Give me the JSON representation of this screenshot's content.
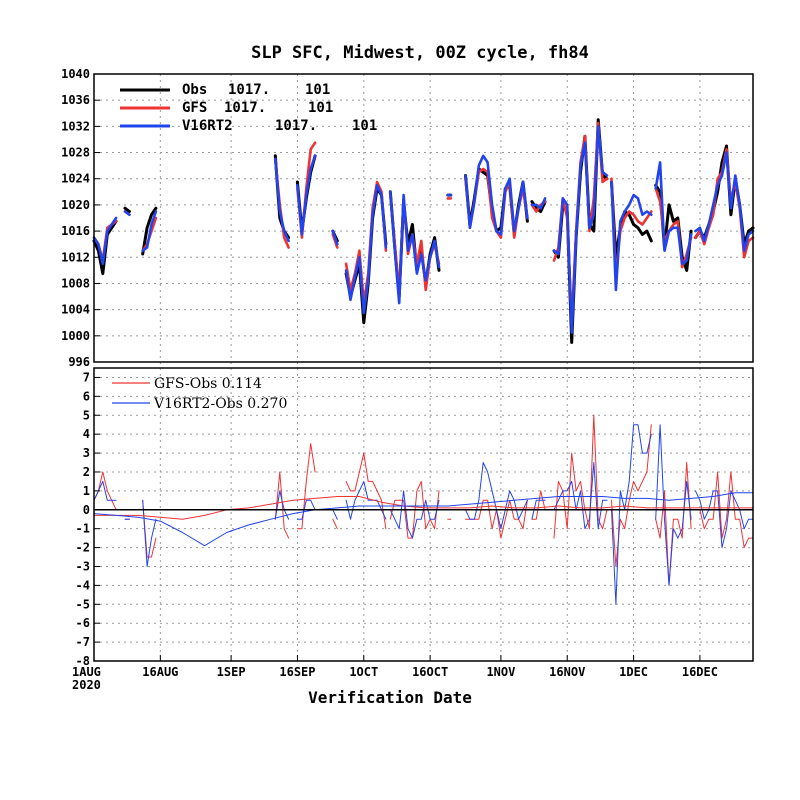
{
  "colors": {
    "obs": "#000000",
    "gfs": "#ee3333",
    "v16": "#2244ee",
    "grid": "#999999"
  },
  "chart_data": [
    {
      "type": "line",
      "title": "SLP SFC, Midwest, 00Z cycle, fh84",
      "xlabel": "",
      "ylabel": "",
      "ylim": [
        996,
        1040
      ],
      "y_ticks": [
        "996",
        "1000",
        "1004",
        "1008",
        "1012",
        "1016",
        "1020",
        "1024",
        "1028",
        "1032",
        "1036",
        "1040"
      ],
      "grid": true,
      "legend_position": "top-left",
      "x_tick_labels": [
        "1AUG",
        "16AUG",
        "1SEP",
        "16SEP",
        "1OCT",
        "16OCT",
        "1NOV",
        "16NOV",
        "1DEC",
        "16DEC"
      ],
      "x_tick_sublabel": "2020",
      "x_days": [
        0,
        15,
        31,
        46,
        61,
        76,
        92,
        107,
        122,
        137
      ],
      "series": [
        {
          "key": "obs",
          "name": "Obs",
          "stat1": "1017.",
          "stat2": "101"
        },
        {
          "key": "gfs",
          "name": "GFS",
          "stat1": "1017.",
          "stat2": "101"
        },
        {
          "key": "v16",
          "name": "V16RT2",
          "stat1": "1017.",
          "stat2": "101"
        }
      ],
      "segments": [
        {
          "x": [
            0,
            1,
            2,
            3,
            4,
            5
          ],
          "obs": [
            1014.5,
            1013.0,
            1009.5,
            1015.5,
            1016.5,
            1017.5
          ],
          "gfs": [
            1015.0,
            1014.0,
            1011.5,
            1016.5,
            1017.0,
            1017.5
          ],
          "v16": [
            1015.0,
            1014.0,
            1011.0,
            1016.0,
            1017.0,
            1018.0
          ]
        },
        {
          "x": [
            7,
            8
          ],
          "obs": [
            1019.5,
            1019.0
          ],
          "gfs": [
            1019.0,
            1018.5
          ],
          "v16": [
            1019.0,
            1018.5
          ]
        },
        {
          "x": [
            11,
            12,
            13,
            14
          ],
          "obs": [
            1012.5,
            1016.5,
            1018.5,
            1019.5
          ],
          "gfs": [
            1013.0,
            1014.0,
            1016.0,
            1018.0
          ],
          "v16": [
            1013.0,
            1013.5,
            1017.0,
            1019.0
          ]
        },
        {
          "x": [
            41,
            42,
            43,
            44
          ],
          "obs": [
            1027.5,
            1018.0,
            1016.0,
            1015.0
          ],
          "gfs": [
            1027.0,
            1020.0,
            1015.0,
            1013.5
          ],
          "v16": [
            1027.0,
            1019.0,
            1016.0,
            1014.5
          ]
        },
        {
          "x": [
            46,
            47,
            48,
            49,
            50
          ],
          "obs": [
            1023.5,
            1016.0,
            1021.0,
            1025.0,
            1027.5
          ],
          "gfs": [
            1022.5,
            1015.0,
            1022.5,
            1028.5,
            1029.5
          ],
          "v16": [
            1023.0,
            1015.5,
            1021.5,
            1025.5,
            1027.5
          ]
        },
        {
          "x": [
            54,
            55
          ],
          "obs": [
            1016.0,
            1014.5
          ],
          "gfs": [
            1015.5,
            1013.5
          ],
          "v16": [
            1016.0,
            1014.0
          ]
        },
        {
          "x": [
            57,
            58,
            59,
            60,
            61,
            62,
            63,
            64,
            65,
            66
          ],
          "obs": [
            1009.5,
            1006.0,
            1008.5,
            1011.0,
            1002.0,
            1008.0,
            1018.0,
            1022.5,
            1021.5,
            1014.0
          ],
          "gfs": [
            1011.0,
            1007.0,
            1009.5,
            1013.0,
            1005.0,
            1009.5,
            1019.5,
            1023.5,
            1022.0,
            1013.0
          ],
          "v16": [
            1010.0,
            1005.5,
            1009.0,
            1012.0,
            1003.5,
            1008.5,
            1018.5,
            1023.0,
            1021.5,
            1013.5
          ]
        },
        {
          "x": [
            67,
            68,
            69,
            70,
            71,
            72,
            73,
            74,
            75,
            76,
            77,
            78
          ],
          "obs": [
            1022.0,
            1013.5,
            1006.0,
            1020.5,
            1014.0,
            1017.0,
            1010.0,
            1013.0,
            1008.0,
            1012.5,
            1015.0,
            1010.0
          ],
          "gfs": [
            1021.5,
            1014.0,
            1006.5,
            1021.0,
            1012.5,
            1015.5,
            1011.0,
            1014.5,
            1007.0,
            1012.0,
            1014.0,
            1011.0
          ],
          "v16": [
            1022.0,
            1013.0,
            1005.0,
            1021.5,
            1013.0,
            1015.5,
            1009.5,
            1012.5,
            1008.5,
            1012.0,
            1014.5,
            1010.5
          ]
        },
        {
          "x": [
            80
          ],
          "obs": [
            1021.5
          ],
          "gfs": [
            1021.0
          ],
          "v16": [
            1021.5
          ]
        },
        {
          "x": [
            84,
            85,
            86,
            87,
            88,
            89,
            90,
            91,
            92,
            93,
            94,
            95,
            96,
            97,
            98
          ],
          "obs": [
            1024.5,
            1017.0,
            1021.0,
            1025.5,
            1025.0,
            1024.5,
            1019.0,
            1016.0,
            1016.5,
            1022.5,
            1023.0,
            1015.5,
            1020.0,
            1023.5,
            1017.5
          ],
          "gfs": [
            1024.0,
            1016.5,
            1020.5,
            1025.0,
            1025.5,
            1025.0,
            1018.0,
            1016.0,
            1015.0,
            1022.0,
            1023.5,
            1015.0,
            1019.5,
            1022.5,
            1018.0
          ],
          "v16": [
            1024.5,
            1016.5,
            1020.5,
            1026.0,
            1027.5,
            1026.5,
            1020.0,
            1016.0,
            1015.5,
            1022.5,
            1024.0,
            1016.0,
            1019.5,
            1023.5,
            1018.0
          ]
        },
        {
          "x": [
            99,
            100,
            101,
            102
          ],
          "obs": [
            1020.5,
            1019.5,
            1019.0,
            1020.5
          ],
          "gfs": [
            1020.0,
            1019.0,
            1020.0,
            1020.5
          ],
          "v16": [
            1020.0,
            1020.0,
            1019.5,
            1021.0
          ]
        },
        {
          "x": [
            104,
            105,
            106,
            107,
            108,
            109,
            110,
            111,
            112,
            113,
            114,
            115,
            116
          ],
          "obs": [
            1013.0,
            1012.0,
            1020.0,
            1019.0,
            999.0,
            1015.0,
            1025.0,
            1030.5,
            1017.0,
            1016.0,
            1033.0,
            1024.5,
            1024.0
          ],
          "gfs": [
            1011.5,
            1013.5,
            1021.0,
            1018.0,
            1002.0,
            1016.0,
            1026.5,
            1030.5,
            1016.0,
            1021.0,
            1032.5,
            1023.5,
            1024.0
          ],
          "v16": [
            1013.0,
            1012.5,
            1021.0,
            1020.0,
            1000.5,
            1015.0,
            1026.0,
            1029.5,
            1016.5,
            1018.5,
            1032.0,
            1025.0,
            1024.5
          ]
        },
        {
          "x": [
            117,
            118,
            119,
            120,
            121,
            122,
            123,
            124,
            125,
            126
          ],
          "obs": [
            1023.5,
            1012.0,
            1016.5,
            1019.0,
            1018.5,
            1017.0,
            1016.5,
            1015.5,
            1016.0,
            1014.5
          ],
          "gfs": [
            1024.0,
            1009.0,
            1016.0,
            1018.0,
            1019.0,
            1018.5,
            1017.5,
            1017.0,
            1018.0,
            1019.0
          ],
          "v16": [
            1023.5,
            1007.0,
            1017.5,
            1019.0,
            1020.0,
            1021.5,
            1021.0,
            1018.5,
            1019.0,
            1018.5
          ]
        },
        {
          "x": [
            127,
            128,
            129,
            130,
            131,
            132,
            133,
            134,
            135
          ],
          "obs": [
            1023.0,
            1022.0,
            1013.5,
            1020.0,
            1017.5,
            1018.0,
            1012.0,
            1010.0,
            1016.0
          ],
          "gfs": [
            1022.5,
            1020.5,
            1014.5,
            1016.0,
            1017.0,
            1017.5,
            1010.5,
            1012.5,
            1015.0
          ],
          "v16": [
            1022.5,
            1026.5,
            1013.0,
            1016.0,
            1016.5,
            1016.5,
            1011.0,
            1011.5,
            1015.5
          ]
        },
        {
          "x": [
            136,
            137,
            138,
            139,
            140,
            141,
            142,
            143,
            144,
            145,
            146,
            147,
            148,
            149
          ],
          "obs": [
            1015.0,
            1016.0,
            1015.0,
            1017.0,
            1019.0,
            1022.0,
            1026.5,
            1029.0,
            1018.5,
            1024.0,
            1020.0,
            1014.0,
            1016.0,
            1016.5
          ],
          "gfs": [
            1015.0,
            1016.0,
            1014.0,
            1016.5,
            1018.5,
            1024.0,
            1025.0,
            1028.5,
            1020.5,
            1023.5,
            1019.5,
            1012.0,
            1014.5,
            1015.0
          ],
          "v16": [
            1016.0,
            1016.5,
            1014.5,
            1017.0,
            1020.0,
            1023.0,
            1024.5,
            1028.0,
            1019.5,
            1024.5,
            1020.0,
            1013.0,
            1015.5,
            1016.0
          ]
        }
      ]
    },
    {
      "type": "line",
      "ylim": [
        -8,
        7.5
      ],
      "y_ticks": [
        "-8",
        "-7",
        "-6",
        "-5",
        "-4",
        "-3",
        "-2",
        "-1",
        "0",
        "1",
        "2",
        "3",
        "4",
        "5",
        "6",
        "7"
      ],
      "grid": true,
      "legend_position": "top-left",
      "xlabel": "Verification Date",
      "series": [
        {
          "key": "gfs",
          "name": "GFS-Obs",
          "stat": "0.114"
        },
        {
          "key": "v16",
          "name": "V16RT2-Obs",
          "stat": "0.270"
        }
      ],
      "mean_gfs": {
        "x": [
          0,
          5,
          10,
          15,
          20,
          25,
          30,
          35,
          40,
          45,
          50,
          55,
          60,
          65,
          70,
          75,
          80,
          85,
          90,
          95,
          100,
          105,
          110,
          115,
          120,
          125,
          130,
          135,
          140,
          145,
          149
        ],
        "y": [
          -0.3,
          -0.3,
          -0.3,
          -0.4,
          -0.5,
          -0.3,
          0.0,
          0.1,
          0.3,
          0.5,
          0.6,
          0.7,
          0.7,
          0.4,
          0.2,
          0.1,
          0.1,
          0.1,
          0.2,
          0.1,
          0.1,
          0.2,
          0.1,
          0.1,
          0.2,
          0.1,
          0.1,
          0.1,
          0.1,
          0.1,
          0.1
        ]
      },
      "mean_v16": {
        "x": [
          0,
          5,
          10,
          15,
          20,
          25,
          30,
          35,
          40,
          45,
          50,
          55,
          60,
          65,
          70,
          75,
          80,
          85,
          90,
          95,
          100,
          105,
          110,
          115,
          120,
          125,
          130,
          135,
          140,
          145,
          149
        ],
        "y": [
          -0.2,
          -0.3,
          -0.4,
          -0.6,
          -1.2,
          -1.9,
          -1.2,
          -0.8,
          -0.5,
          -0.2,
          0.0,
          0.1,
          0.2,
          0.2,
          0.2,
          0.2,
          0.2,
          0.3,
          0.4,
          0.5,
          0.6,
          0.7,
          0.7,
          0.7,
          0.6,
          0.6,
          0.5,
          0.6,
          0.7,
          0.9,
          0.9
        ]
      }
    }
  ]
}
